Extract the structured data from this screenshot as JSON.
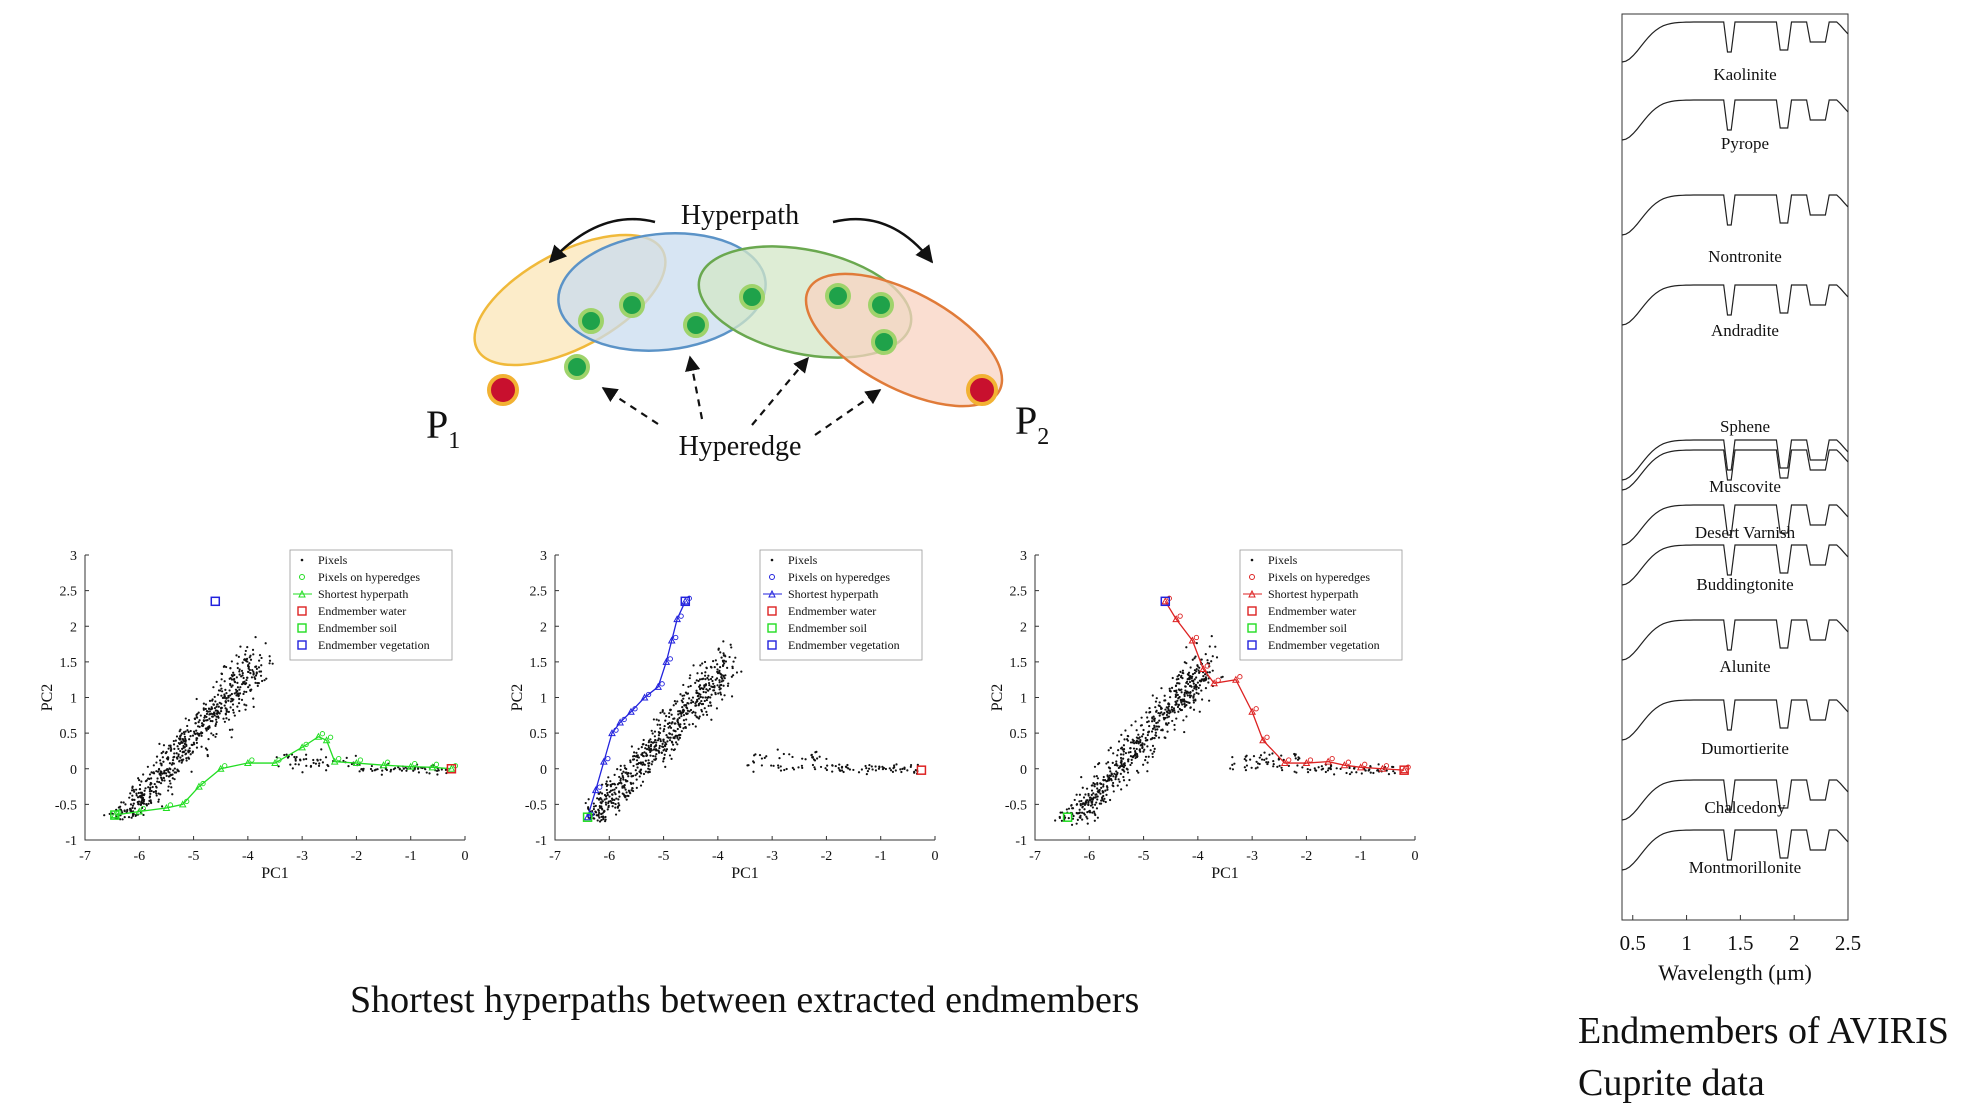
{
  "diagram": {
    "top_label": "Hyperpath",
    "bottom_label": "Hyperedge",
    "left_node": {
      "letter": "P",
      "subscript": "1"
    },
    "right_node": {
      "letter": "P",
      "subscript": "2"
    },
    "colors": {
      "yellow_edge": "#f0b93a",
      "yellow_fill": "#fbe9c0",
      "blue_edge": "#5b93c7",
      "blue_fill": "#c9dcef",
      "green_edge": "#6aa84f",
      "green_fill": "#d3e7c7",
      "orange_edge": "#e07b39",
      "orange_fill": "#f8d3c2",
      "pixel_fill": "#1fa24a",
      "pixel_ring": "#9fd36b",
      "endpoint_fill": "#c8102e",
      "endpoint_ring": "#f2b233"
    }
  },
  "captions": {
    "hyperpaths": "Shortest hyperpaths between extracted endmembers",
    "endmembers_line1": "Endmembers of AVIRIS",
    "endmembers_line2": "Cuprite data"
  },
  "chart_data": [
    {
      "type": "scatter",
      "xlabel": "PC1",
      "ylabel": "PC2",
      "xlim": [
        -7,
        0
      ],
      "ylim": [
        -1,
        3
      ],
      "xticks": [
        -7,
        -6,
        -5,
        -4,
        -3,
        -2,
        -1,
        0
      ],
      "yticks": [
        -1,
        -0.5,
        0,
        0.5,
        1,
        1.5,
        2,
        2.5,
        3
      ],
      "legend_position": "top-right",
      "accent": "#22dd22",
      "legend": [
        "Pixels",
        "Pixels on hyperedges",
        "Shortest hyperpath",
        "Endmember water",
        "Endmember soil",
        "Endmember vegetation"
      ],
      "endmembers": {
        "water": [
          -0.25,
          0.0
        ],
        "soil": [
          -6.45,
          -0.65
        ],
        "vegetation": [
          -4.6,
          2.35
        ]
      },
      "path": {
        "x": [
          -6.45,
          -6.0,
          -5.5,
          -5.2,
          -4.9,
          -4.5,
          -4.0,
          -3.5,
          -3.0,
          -2.7,
          -2.55,
          -2.4,
          -2.0,
          -1.5,
          -1.0,
          -0.6,
          -0.25
        ],
        "y": [
          -0.65,
          -0.6,
          -0.55,
          -0.5,
          -0.25,
          0.0,
          0.08,
          0.08,
          0.3,
          0.45,
          0.4,
          0.1,
          0.08,
          0.05,
          0.03,
          0.02,
          0.0
        ]
      }
    },
    {
      "type": "scatter",
      "xlabel": "PC1",
      "ylabel": "PC2",
      "xlim": [
        -7,
        0
      ],
      "ylim": [
        -1,
        3
      ],
      "xticks": [
        -7,
        -6,
        -5,
        -4,
        -3,
        -2,
        -1,
        0
      ],
      "yticks": [
        -1,
        -0.5,
        0,
        0.5,
        1,
        1.5,
        2,
        2.5,
        3
      ],
      "legend_position": "top-right",
      "accent": "#2222dd",
      "legend": [
        "Pixels",
        "Pixels on hyperedges",
        "Shortest hyperpath",
        "Endmember water",
        "Endmember soil",
        "Endmember vegetation"
      ],
      "endmembers": {
        "water": [
          -0.25,
          -0.02
        ],
        "soil": [
          -6.4,
          -0.68
        ],
        "vegetation": [
          -4.6,
          2.35
        ]
      },
      "path": {
        "x": [
          -6.4,
          -6.25,
          -6.1,
          -5.95,
          -5.8,
          -5.6,
          -5.35,
          -5.1,
          -4.95,
          -4.85,
          -4.75,
          -4.6
        ],
        "y": [
          -0.68,
          -0.3,
          0.1,
          0.5,
          0.65,
          0.8,
          1.0,
          1.15,
          1.5,
          1.8,
          2.1,
          2.35
        ]
      }
    },
    {
      "type": "scatter",
      "xlabel": "PC1",
      "ylabel": "PC2",
      "xlim": [
        -7,
        0
      ],
      "ylim": [
        -1,
        3
      ],
      "xticks": [
        -7,
        -6,
        -5,
        -4,
        -3,
        -2,
        -1,
        0
      ],
      "yticks": [
        -1,
        -0.5,
        0,
        0.5,
        1,
        1.5,
        2,
        2.5,
        3
      ],
      "legend_position": "top-right",
      "accent": "#dd2222",
      "legend": [
        "Pixels",
        "Pixels on hyperedges",
        "Shortest hyperpath",
        "Endmember water",
        "Endmember soil",
        "Endmember vegetation"
      ],
      "endmembers": {
        "water": [
          -0.2,
          -0.02
        ],
        "soil": [
          -6.4,
          -0.68
        ],
        "vegetation": [
          -4.6,
          2.35
        ]
      },
      "path": {
        "x": [
          -4.6,
          -4.4,
          -4.1,
          -3.9,
          -3.7,
          -3.3,
          -3.0,
          -2.8,
          -2.4,
          -2.0,
          -1.6,
          -1.3,
          -1.0,
          -0.6,
          -0.2
        ],
        "y": [
          2.35,
          2.1,
          1.8,
          1.4,
          1.2,
          1.25,
          0.8,
          0.4,
          0.08,
          0.08,
          0.1,
          0.05,
          0.02,
          0.0,
          -0.02
        ]
      }
    },
    {
      "type": "line",
      "xlabel": "Wavelength (μm)",
      "xlim": [
        0.4,
        2.5
      ],
      "xticks": [
        0.5,
        1,
        1.5,
        2,
        2.5
      ],
      "xtick_labels": [
        "0.5",
        "1",
        "1.5",
        "2",
        "2.5"
      ],
      "series": [
        {
          "name": "Kaolinite"
        },
        {
          "name": "Pyrope"
        },
        {
          "name": "Nontronite"
        },
        {
          "name": "Andradite"
        },
        {
          "name": "Sphene"
        },
        {
          "name": "Muscovite"
        },
        {
          "name": "Desert Varnish"
        },
        {
          "name": "Buddingtonite"
        },
        {
          "name": "Alunite"
        },
        {
          "name": "Dumortierite"
        },
        {
          "name": "Chalcedony"
        },
        {
          "name": "Montmorillonite"
        }
      ]
    }
  ]
}
